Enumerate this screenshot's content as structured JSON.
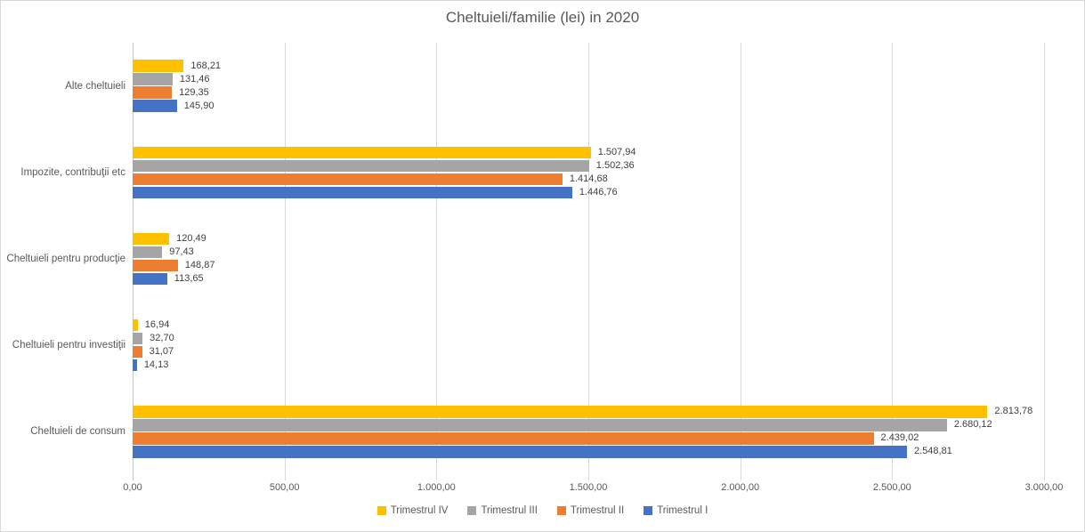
{
  "title": "Cheltuieli/familie (lei) in 2020",
  "chart_data": {
    "type": "bar",
    "orientation": "horizontal",
    "title": "Cheltuieli/familie (lei) in 2020",
    "categories": [
      "Alte cheltuieli",
      "Impozite, contribuţii etc",
      "Cheltuieli pentru producţie",
      "Cheltuieli pentru investiţii",
      "Cheltuieli de consum"
    ],
    "series": [
      {
        "name": "Trimestrul IV",
        "color": "#FFC000",
        "values": [
          168.21,
          1507.94,
          120.49,
          16.94,
          2813.78
        ],
        "labels": [
          "168,21",
          "1.507,94",
          "120,49",
          "16,94",
          "2.813,78"
        ]
      },
      {
        "name": "Trimestrul III",
        "color": "#A5A5A5",
        "values": [
          131.46,
          1502.36,
          97.43,
          32.7,
          2680.12
        ],
        "labels": [
          "131,46",
          "1.502,36",
          "97,43",
          "32,70",
          "2.680,12"
        ]
      },
      {
        "name": "Trimestrul II",
        "color": "#ED7D31",
        "values": [
          129.35,
          1414.68,
          148.87,
          31.07,
          2439.02
        ],
        "labels": [
          "129,35",
          "1.414,68",
          "148,87",
          "31,07",
          "2.439,02"
        ]
      },
      {
        "name": "Trimestrul I",
        "color": "#4472C4",
        "values": [
          145.9,
          1446.76,
          113.65,
          14.13,
          2548.81
        ],
        "labels": [
          "145,90",
          "1.446,76",
          "113,65",
          "14,13",
          "2.548,81"
        ]
      }
    ],
    "x_axis": {
      "min": 0,
      "max": 3000,
      "tick_interval": 500,
      "tick_labels": [
        "0,00",
        "500,00",
        "1.000,00",
        "1.500,00",
        "2.000,00",
        "2.500,00",
        "3.000,00"
      ]
    },
    "legend": {
      "position": "bottom",
      "entries": [
        "Trimestrul IV",
        "Trimestrul III",
        "Trimestrul II",
        "Trimestrul I"
      ]
    },
    "grid": true
  }
}
